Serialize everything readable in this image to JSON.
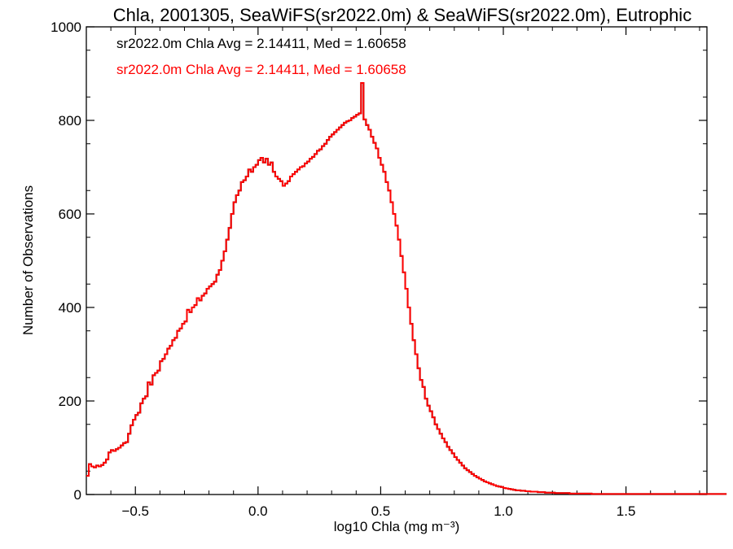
{
  "chart_data": {
    "type": "histogram",
    "title": "Chla, 2001305, SeaWiFS(sr2022.0m) & SeaWiFS(sr2022.0m), Eutrophic",
    "xlabel": "log10 Chla (mg m⁻³)",
    "ylabel": "Number of Observations",
    "xlim": [
      -0.7,
      1.83
    ],
    "ylim": [
      0,
      1000
    ],
    "x_ticks": [
      -0.5,
      0.0,
      0.5,
      1.0,
      1.5
    ],
    "x_tick_labels": [
      "−0.5",
      "0.0",
      "0.5",
      "1.0",
      "1.5"
    ],
    "y_ticks": [
      0,
      200,
      400,
      600,
      800,
      1000
    ],
    "y_tick_labels": [
      "0",
      "200",
      "400",
      "600",
      "800",
      "1000"
    ],
    "annotations": [
      {
        "text": "sr2022.0m Chla Avg = 2.14411, Med = 1.60658",
        "color": "#000000"
      },
      {
        "text": "sr2022.0m Chla Avg = 2.14411, Med = 1.60658",
        "color": "#ff0000"
      }
    ],
    "series": [
      {
        "color": "#000000",
        "bin_start": -0.7,
        "bin_width": 0.01,
        "counts": [
          40,
          65,
          60,
          58,
          62,
          60,
          63,
          68,
          75,
          90,
          95,
          93,
          97,
          100,
          105,
          110,
          112,
          130,
          148,
          160,
          170,
          175,
          195,
          205,
          210,
          240,
          235,
          255,
          260,
          265,
          285,
          290,
          300,
          312,
          318,
          330,
          335,
          350,
          355,
          365,
          370,
          395,
          390,
          400,
          405,
          420,
          415,
          425,
          430,
          440,
          445,
          450,
          455,
          470,
          480,
          500,
          520,
          545,
          570,
          600,
          625,
          640,
          650,
          668,
          672,
          680,
          695,
          690,
          700,
          705,
          715,
          720,
          710,
          718,
          705,
          710,
          690,
          680,
          675,
          670,
          660,
          665,
          670,
          680,
          685,
          690,
          695,
          700,
          702,
          708,
          712,
          718,
          722,
          728,
          735,
          738,
          745,
          750,
          758,
          765,
          770,
          775,
          780,
          785,
          790,
          795,
          798,
          800,
          805,
          808,
          812,
          815,
          880,
          802,
          790,
          780,
          765,
          752,
          740,
          720,
          705,
          690,
          668,
          650,
          625,
          600,
          575,
          545,
          510,
          475,
          440,
          400,
          365,
          330,
          300,
          270,
          245,
          230,
          205,
          190,
          178,
          165,
          150,
          140,
          130,
          120,
          112,
          102,
          95,
          88,
          80,
          74,
          68,
          62,
          56,
          52,
          48,
          44,
          40,
          37,
          34,
          31,
          28,
          26,
          24,
          22,
          20,
          18,
          17,
          16,
          14,
          13,
          12,
          11,
          10,
          9,
          9,
          8,
          8,
          7,
          7,
          6,
          6,
          6,
          5,
          5,
          5,
          4,
          4,
          4,
          4,
          3,
          3,
          3,
          3,
          3,
          3,
          2,
          2,
          2,
          2,
          2,
          2,
          2,
          2,
          2,
          1,
          1,
          1,
          1,
          1,
          1,
          1,
          1,
          1,
          1,
          1,
          1,
          1,
          1,
          1,
          1,
          1,
          1,
          1,
          1,
          1,
          1,
          1,
          1,
          1,
          1,
          1,
          1,
          1,
          1,
          1,
          1,
          1,
          1,
          1,
          1,
          1,
          1,
          1,
          1,
          1,
          1,
          1,
          1,
          1,
          1,
          1,
          1,
          1,
          1,
          1,
          1,
          1,
          1,
          1,
          1
        ]
      },
      {
        "color": "#ff0000",
        "bin_start": -0.7,
        "bin_width": 0.01,
        "counts": [
          40,
          65,
          60,
          58,
          62,
          60,
          63,
          68,
          75,
          90,
          95,
          93,
          97,
          100,
          105,
          110,
          112,
          130,
          148,
          160,
          170,
          175,
          195,
          205,
          210,
          240,
          235,
          255,
          260,
          265,
          285,
          290,
          300,
          312,
          318,
          330,
          335,
          350,
          355,
          365,
          370,
          395,
          390,
          400,
          405,
          420,
          415,
          425,
          430,
          440,
          445,
          450,
          455,
          470,
          480,
          500,
          520,
          545,
          570,
          600,
          625,
          640,
          650,
          668,
          672,
          680,
          695,
          690,
          700,
          705,
          715,
          720,
          710,
          718,
          705,
          710,
          690,
          680,
          675,
          670,
          660,
          665,
          670,
          680,
          685,
          690,
          695,
          700,
          702,
          708,
          712,
          718,
          722,
          728,
          735,
          738,
          745,
          750,
          758,
          765,
          770,
          775,
          780,
          785,
          790,
          795,
          798,
          800,
          805,
          808,
          812,
          815,
          880,
          802,
          790,
          780,
          765,
          752,
          740,
          720,
          705,
          690,
          668,
          650,
          625,
          600,
          575,
          545,
          510,
          475,
          440,
          400,
          365,
          330,
          300,
          270,
          245,
          230,
          205,
          190,
          178,
          165,
          150,
          140,
          130,
          120,
          112,
          102,
          95,
          88,
          80,
          74,
          68,
          62,
          56,
          52,
          48,
          44,
          40,
          37,
          34,
          31,
          28,
          26,
          24,
          22,
          20,
          18,
          17,
          16,
          14,
          13,
          12,
          11,
          10,
          9,
          9,
          8,
          8,
          7,
          7,
          6,
          6,
          6,
          5,
          5,
          5,
          4,
          4,
          4,
          4,
          3,
          3,
          3,
          3,
          3,
          3,
          2,
          2,
          2,
          2,
          2,
          2,
          2,
          2,
          2,
          1,
          1,
          1,
          1,
          1,
          1,
          1,
          1,
          1,
          1,
          1,
          1,
          1,
          1,
          1,
          1,
          1,
          1,
          1,
          1,
          1,
          1,
          1,
          1,
          1,
          1,
          1,
          1,
          1,
          1,
          1,
          1,
          1,
          1,
          1,
          1,
          1,
          1,
          1,
          1,
          1,
          1,
          1,
          1,
          1,
          1,
          1,
          1,
          1,
          1,
          1,
          1,
          1,
          1,
          1,
          1
        ]
      }
    ]
  }
}
